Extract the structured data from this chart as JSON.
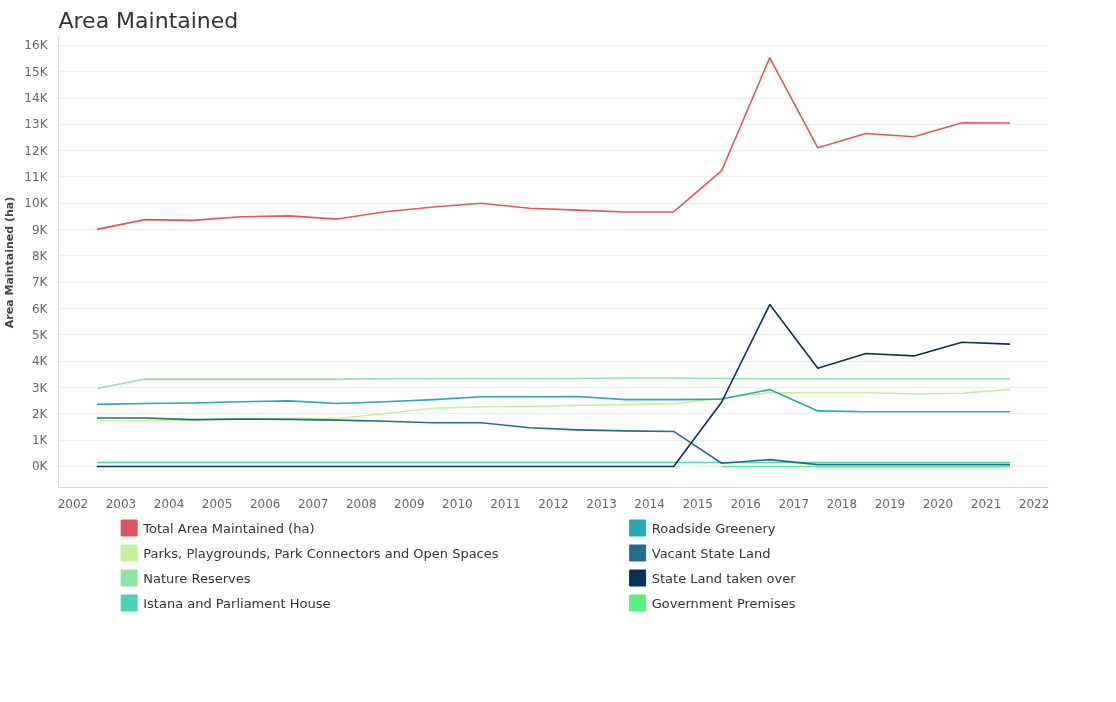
{
  "chart_data": {
    "type": "line",
    "title": "Area Maintained",
    "ylabel": "Area Maintained (ha)",
    "x": [
      2002.5,
      2003.5,
      2004.5,
      2005.5,
      2006.5,
      2007.5,
      2008.5,
      2009.5,
      2010.5,
      2011.5,
      2012.5,
      2013.5,
      2014.5,
      2015.5,
      2016.5,
      2017.5,
      2018.5,
      2019.5,
      2020.5,
      2021.5
    ],
    "xlim": [
      2001.7,
      2022.3
    ],
    "xticks": [
      2002,
      2003,
      2004,
      2005,
      2006,
      2007,
      2008,
      2009,
      2010,
      2011,
      2012,
      2013,
      2014,
      2015,
      2016,
      2017,
      2018,
      2019,
      2020,
      2021,
      2022
    ],
    "ylim": [
      -800,
      16300
    ],
    "yticks": [
      {
        "value": 0,
        "label": "0K"
      },
      {
        "value": 1000,
        "label": "1K"
      },
      {
        "value": 2000,
        "label": "2K"
      },
      {
        "value": 3000,
        "label": "3K"
      },
      {
        "value": 4000,
        "label": "4K"
      },
      {
        "value": 5000,
        "label": "5K"
      },
      {
        "value": 6000,
        "label": "6K"
      },
      {
        "value": 7000,
        "label": "7K"
      },
      {
        "value": 8000,
        "label": "8K"
      },
      {
        "value": 9000,
        "label": "9K"
      },
      {
        "value": 10000,
        "label": "10K"
      },
      {
        "value": 11000,
        "label": "11K"
      },
      {
        "value": 12000,
        "label": "12K"
      },
      {
        "value": 13000,
        "label": "13K"
      },
      {
        "value": 14000,
        "label": "14K"
      },
      {
        "value": 15000,
        "label": "15K"
      },
      {
        "value": 16000,
        "label": "16K"
      }
    ],
    "grid": "y",
    "legend": "bottom",
    "marker": "none",
    "line_style": "solid",
    "series": [
      {
        "name": "Total Area Maintained (ha)",
        "color": "#e15759",
        "values": [
          9010,
          9380,
          9350,
          9490,
          9520,
          9400,
          9680,
          9860,
          10000,
          9810,
          9740,
          9670,
          9670,
          11240,
          15530,
          12110,
          12650,
          12530,
          13060,
          13050
        ]
      },
      {
        "name": "Parks, Playgrounds, Park Connectors and Open Spaces",
        "color": "#c7f09a",
        "values": [
          1740,
          1750,
          1760,
          1820,
          1820,
          1820,
          2010,
          2210,
          2270,
          2280,
          2320,
          2350,
          2380,
          2600,
          2800,
          2800,
          2800,
          2760,
          2780,
          2930
        ]
      },
      {
        "name": "Nature Reserves",
        "color": "#8fe3a6",
        "values": [
          2960,
          3320,
          3320,
          3320,
          3320,
          3320,
          3330,
          3340,
          3340,
          3340,
          3340,
          3360,
          3360,
          3340,
          3330,
          3330,
          3330,
          3330,
          3330,
          3330
        ]
      },
      {
        "name": "Istana and Parliament House",
        "color": "#4fd1b8",
        "values": [
          150,
          150,
          150,
          150,
          150,
          150,
          150,
          150,
          150,
          150,
          150,
          150,
          150,
          150,
          150,
          150,
          150,
          150,
          150,
          150
        ]
      },
      {
        "name": "Roadside Greenery",
        "color": "#2aa8b0",
        "values": [
          2360,
          2390,
          2410,
          2460,
          2490,
          2390,
          2460,
          2540,
          2650,
          2650,
          2660,
          2540,
          2540,
          2560,
          2920,
          2110,
          2080,
          2080,
          2080,
          2080
        ]
      },
      {
        "name": "Vacant State Land",
        "color": "#1f6e8c",
        "values": [
          1840,
          1840,
          1780,
          1800,
          1790,
          1760,
          1720,
          1660,
          1660,
          1470,
          1390,
          1350,
          1330,
          120,
          260,
          70,
          70,
          70,
          70,
          70
        ]
      },
      {
        "name": "State Land taken over",
        "color": "#0b3158",
        "values": [
          0,
          0,
          0,
          0,
          0,
          0,
          0,
          0,
          0,
          0,
          0,
          0,
          0,
          2450,
          6150,
          3730,
          4290,
          4200,
          4720,
          4650
        ]
      },
      {
        "name": "Government Premises",
        "color": "#5cf07e",
        "values": [
          null,
          null,
          null,
          null,
          null,
          null,
          null,
          null,
          null,
          null,
          null,
          null,
          null,
          0,
          0,
          0,
          0,
          0,
          0,
          0
        ]
      }
    ]
  }
}
